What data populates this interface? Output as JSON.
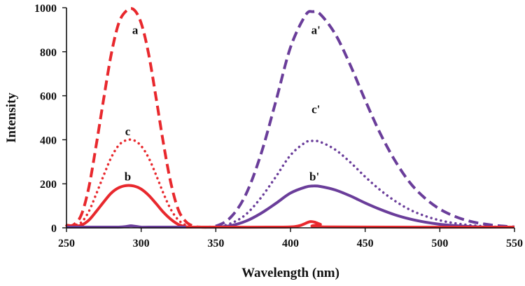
{
  "chart_data": {
    "type": "line",
    "title": "",
    "xlabel": "Wavelength (nm)",
    "ylabel": "Intensity",
    "xlim": [
      250,
      550
    ],
    "ylim": [
      0,
      1000
    ],
    "xticks": [
      250,
      300,
      350,
      400,
      450,
      500,
      550
    ],
    "yticks": [
      0,
      200,
      400,
      600,
      800,
      1000
    ],
    "grid": false,
    "legend": "none",
    "colors": {
      "red": "#e8282d",
      "purple": "#6a3d9a",
      "axis": "#111111"
    },
    "series": [
      {
        "name": "a",
        "label": "a",
        "color": "#e8282d",
        "style": "dashed",
        "x": [
          250,
          255,
          260,
          265,
          270,
          275,
          280,
          285,
          290,
          295,
          300,
          305,
          310,
          315,
          320,
          325,
          330,
          335,
          340,
          350
        ],
        "y": [
          8,
          15,
          60,
          185,
          380,
          590,
          790,
          930,
          985,
          992,
          930,
          790,
          590,
          380,
          200,
          80,
          28,
          8,
          2,
          0
        ]
      },
      {
        "name": "c",
        "label": "c",
        "color": "#e8282d",
        "style": "dotted",
        "x": [
          250,
          255,
          260,
          265,
          270,
          275,
          280,
          285,
          290,
          295,
          300,
          305,
          310,
          315,
          320,
          325,
          330,
          335,
          340
        ],
        "y": [
          10,
          12,
          25,
          75,
          155,
          240,
          320,
          375,
          398,
          398,
          372,
          318,
          240,
          155,
          82,
          35,
          12,
          4,
          1
        ]
      },
      {
        "name": "b",
        "label": "b",
        "color": "#e8282d",
        "style": "solid",
        "x": [
          250,
          255,
          260,
          265,
          270,
          275,
          280,
          285,
          290,
          295,
          300,
          305,
          310,
          315,
          320,
          325,
          330,
          335
        ],
        "y": [
          12,
          8,
          12,
          35,
          75,
          118,
          158,
          182,
          192,
          190,
          176,
          148,
          110,
          70,
          38,
          15,
          5,
          1
        ]
      },
      {
        "name": "a'",
        "label": "a'",
        "color": "#6a3d9a",
        "style": "dashed",
        "x": [
          340,
          350,
          360,
          370,
          380,
          390,
          400,
          410,
          415,
          420,
          430,
          440,
          450,
          460,
          470,
          480,
          490,
          500,
          510,
          520,
          530,
          540,
          550
        ],
        "y": [
          0,
          8,
          48,
          150,
          330,
          570,
          820,
          965,
          982,
          970,
          880,
          740,
          580,
          430,
          305,
          205,
          135,
          85,
          52,
          30,
          17,
          9,
          4
        ]
      },
      {
        "name": "c'",
        "label": "c'",
        "color": "#6a3d9a",
        "style": "dotted",
        "x": [
          340,
          350,
          360,
          370,
          380,
          390,
          400,
          410,
          415,
          420,
          430,
          440,
          450,
          460,
          470,
          480,
          490,
          500,
          510,
          520,
          530,
          540,
          550
        ],
        "y": [
          0,
          4,
          20,
          60,
          135,
          230,
          330,
          388,
          395,
          390,
          355,
          298,
          232,
          172,
          122,
          82,
          54,
          34,
          21,
          12,
          7,
          4,
          2
        ]
      },
      {
        "name": "b'",
        "label": "b'",
        "color": "#6a3d9a",
        "style": "solid",
        "x": [
          340,
          350,
          360,
          370,
          380,
          390,
          400,
          410,
          415,
          420,
          430,
          440,
          450,
          460,
          470,
          480,
          490,
          500,
          510,
          520,
          530,
          540,
          550
        ],
        "y": [
          0,
          2,
          10,
          30,
          65,
          110,
          158,
          185,
          190,
          188,
          172,
          145,
          113,
          84,
          59,
          40,
          26,
          16,
          10,
          6,
          3,
          2,
          1
        ]
      },
      {
        "name": "purple-baseline",
        "label": "",
        "color": "#6a3d9a",
        "style": "solid",
        "x": [
          250,
          280,
          285,
          290,
          293,
          296,
          300,
          305,
          340
        ],
        "y": [
          0,
          0,
          2,
          6,
          9,
          7,
          3,
          0,
          0
        ]
      },
      {
        "name": "red-baseline",
        "label": "",
        "color": "#e8282d",
        "style": "solid",
        "x": [
          330,
          350,
          395,
          405,
          410,
          413,
          416,
          420,
          425,
          550
        ],
        "y": [
          0,
          0,
          0,
          8,
          20,
          28,
          26,
          16,
          4,
          0
        ]
      }
    ],
    "annotations": [
      {
        "text": "a",
        "x": 296,
        "y": 880
      },
      {
        "text": "c",
        "x": 291,
        "y": 420
      },
      {
        "text": "b",
        "x": 291,
        "y": 215
      },
      {
        "text": "a'",
        "x": 417,
        "y": 880
      },
      {
        "text": "c'",
        "x": 417,
        "y": 520
      },
      {
        "text": "b'",
        "x": 416,
        "y": 215
      }
    ]
  }
}
